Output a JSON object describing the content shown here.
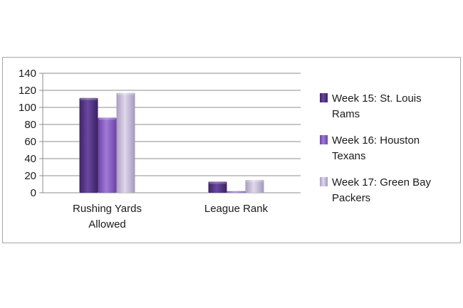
{
  "chart_data": {
    "type": "bar",
    "title": "",
    "xlabel": "",
    "ylabel": "",
    "ylim": [
      0,
      140
    ],
    "yticks": [
      0,
      20,
      40,
      60,
      80,
      100,
      120,
      140
    ],
    "grid": true,
    "legend_position": "right",
    "categories": [
      [
        "Rushing Yards",
        "Allowed"
      ],
      [
        "League Rank"
      ]
    ],
    "series": [
      {
        "name": [
          "Week 15: St. Louis",
          "Rams"
        ],
        "values": [
          111,
          13
        ],
        "color": "#5b3a8c"
      },
      {
        "name": [
          "Week 16: Houston",
          "Texans"
        ],
        "values": [
          88,
          2
        ],
        "color": "#8e63c9"
      },
      {
        "name": [
          "Week 17: Green Bay",
          "Packers"
        ],
        "values": [
          117,
          15
        ],
        "color": "#c8bfd8"
      }
    ]
  }
}
